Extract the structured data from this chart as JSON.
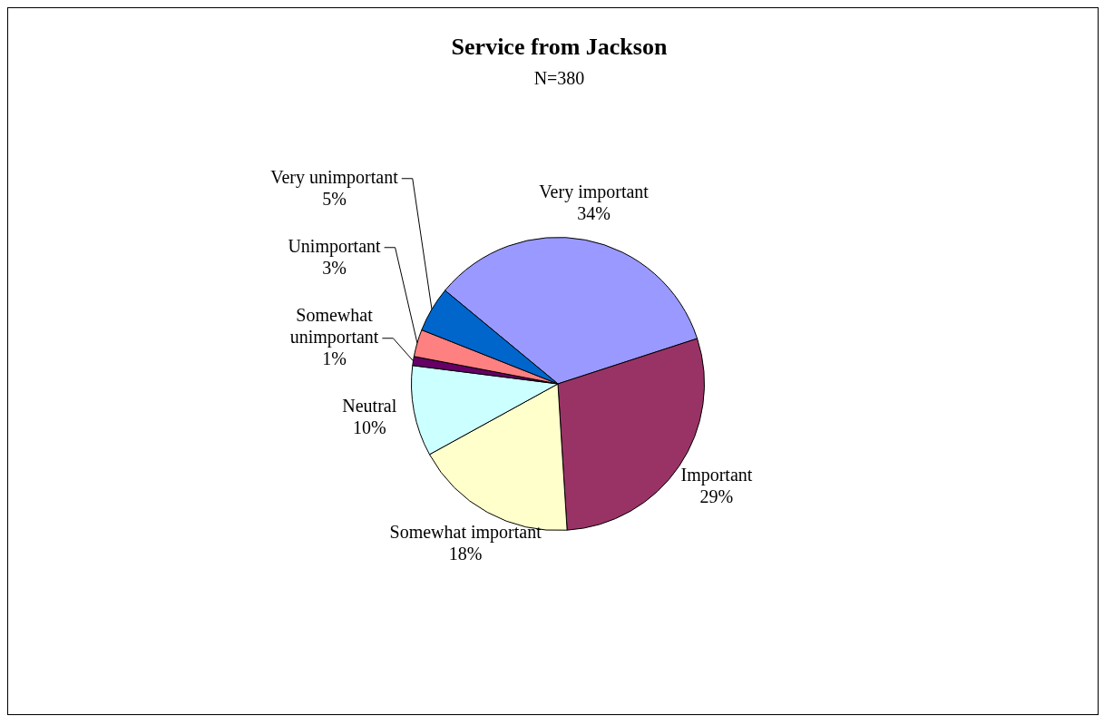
{
  "chart_data": {
    "type": "pie",
    "title": "Service from Jackson",
    "subtitle": "N=380",
    "categories": [
      "Very important",
      "Important",
      "Somewhat important",
      "Neutral",
      "Somewhat unimportant",
      "Unimportant",
      "Very unimportant"
    ],
    "values": [
      34,
      29,
      18,
      10,
      1,
      3,
      5
    ],
    "colors": [
      "#9999ff",
      "#993366",
      "#ffffcc",
      "#ccffff",
      "#660066",
      "#ff8080",
      "#0066cc"
    ],
    "value_labels": [
      "34%",
      "29%",
      "18%",
      "10%",
      "1%",
      "3%",
      "5%"
    ],
    "legend": false
  }
}
